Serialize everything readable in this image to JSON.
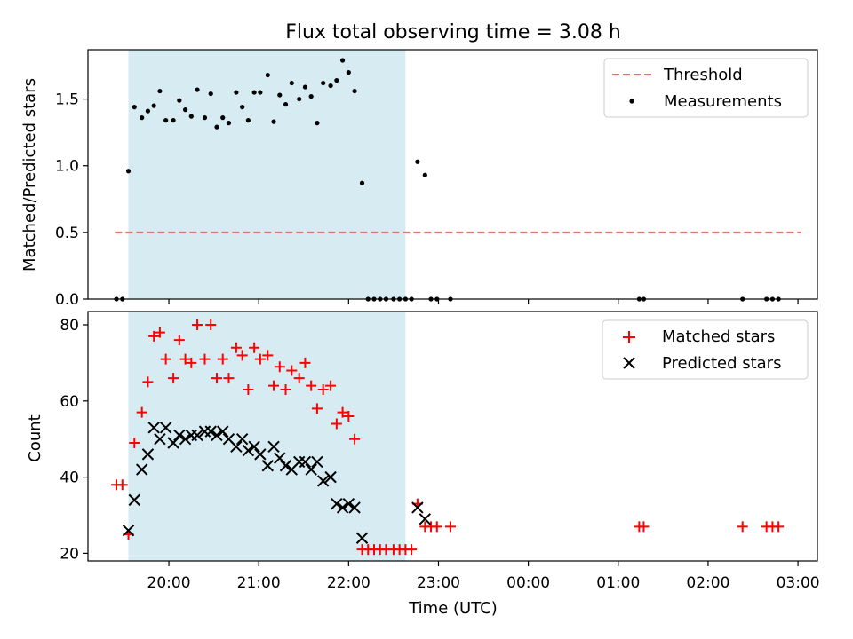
{
  "title": "Flux total observing time = 3.08 h",
  "colors": {
    "shade": "#add8e6",
    "threshold": "#ff6666",
    "measurement": "#000000",
    "matched": "#ff0000",
    "predicted": "#000000"
  },
  "chart_data": [
    {
      "type": "scatter",
      "ylabel": "Matched/Predicted stars",
      "xlabel": "",
      "ylim": [
        0,
        1.87
      ],
      "yticks": [
        "0.0",
        "0.5",
        "1.0",
        "1.5"
      ],
      "shaded_span": [
        "19:33",
        "22:38"
      ],
      "legend": {
        "position": "top-right",
        "entries": [
          "Threshold",
          "Measurements"
        ]
      },
      "grid": false,
      "series": [
        {
          "name": "Threshold",
          "style": "dashed-line",
          "x": [
            "19:24",
            "03:02"
          ],
          "y": [
            0.5,
            0.5
          ]
        },
        {
          "name": "Measurements",
          "style": "dot",
          "points": [
            [
              "19:25",
              0.0
            ],
            [
              "19:29",
              0.0
            ],
            [
              "19:33",
              0.96
            ],
            [
              "19:37",
              1.44
            ],
            [
              "19:42",
              1.36
            ],
            [
              "19:46",
              1.41
            ],
            [
              "19:50",
              1.45
            ],
            [
              "19:54",
              1.56
            ],
            [
              "19:58",
              1.34
            ],
            [
              "20:03",
              1.34
            ],
            [
              "20:07",
              1.49
            ],
            [
              "20:11",
              1.42
            ],
            [
              "20:15",
              1.37
            ],
            [
              "20:19",
              1.57
            ],
            [
              "20:24",
              1.36
            ],
            [
              "20:28",
              1.54
            ],
            [
              "20:32",
              1.29
            ],
            [
              "20:36",
              1.36
            ],
            [
              "20:40",
              1.32
            ],
            [
              "20:45",
              1.55
            ],
            [
              "20:49",
              1.44
            ],
            [
              "20:53",
              1.34
            ],
            [
              "20:57",
              1.55
            ],
            [
              "21:01",
              1.55
            ],
            [
              "21:06",
              1.68
            ],
            [
              "21:10",
              1.33
            ],
            [
              "21:14",
              1.53
            ],
            [
              "21:18",
              1.46
            ],
            [
              "21:22",
              1.62
            ],
            [
              "21:27",
              1.5
            ],
            [
              "21:31",
              1.59
            ],
            [
              "21:35",
              1.52
            ],
            [
              "21:39",
              1.32
            ],
            [
              "21:43",
              1.62
            ],
            [
              "21:48",
              1.6
            ],
            [
              "21:52",
              1.64
            ],
            [
              "21:56",
              1.79
            ],
            [
              "22:00",
              1.7
            ],
            [
              "22:04",
              1.56
            ],
            [
              "22:09",
              0.87
            ],
            [
              "22:13",
              0.0
            ],
            [
              "22:17",
              0.0
            ],
            [
              "22:21",
              0.0
            ],
            [
              "22:25",
              0.0
            ],
            [
              "22:30",
              0.0
            ],
            [
              "22:34",
              0.0
            ],
            [
              "22:38",
              0.0
            ],
            [
              "22:42",
              0.0
            ],
            [
              "22:46",
              1.03
            ],
            [
              "22:51",
              0.93
            ],
            [
              "22:55",
              0.0
            ],
            [
              "22:59",
              0.0
            ],
            [
              "23:08",
              0.0
            ],
            [
              "01:14",
              0.0
            ],
            [
              "01:17",
              0.0
            ],
            [
              "02:23",
              0.0
            ],
            [
              "02:39",
              0.0
            ],
            [
              "02:43",
              0.0
            ],
            [
              "02:47",
              0.0
            ]
          ]
        }
      ]
    },
    {
      "type": "scatter",
      "ylabel": "Count",
      "xlabel": "Time (UTC)",
      "ylim": [
        18,
        83.5
      ],
      "yticks": [
        "20",
        "40",
        "60",
        "80"
      ],
      "xticks": [
        "20:00",
        "21:00",
        "22:00",
        "23:00",
        "00:00",
        "01:00",
        "02:00",
        "03:00"
      ],
      "shaded_span": [
        "19:33",
        "22:38"
      ],
      "legend": {
        "position": "top-right",
        "entries": [
          "Matched stars",
          "Predicted stars"
        ]
      },
      "grid": false,
      "series": [
        {
          "name": "Matched stars",
          "style": "plus",
          "points": [
            [
              "19:25",
              38
            ],
            [
              "19:29",
              38
            ],
            [
              "19:33",
              25
            ],
            [
              "19:37",
              49
            ],
            [
              "19:42",
              57
            ],
            [
              "19:46",
              65
            ],
            [
              "19:50",
              77
            ],
            [
              "19:54",
              78
            ],
            [
              "19:58",
              71
            ],
            [
              "20:03",
              66
            ],
            [
              "20:07",
              76
            ],
            [
              "20:11",
              71
            ],
            [
              "20:15",
              70
            ],
            [
              "20:19",
              80
            ],
            [
              "20:24",
              71
            ],
            [
              "20:28",
              80
            ],
            [
              "20:32",
              66
            ],
            [
              "20:36",
              71
            ],
            [
              "20:40",
              66
            ],
            [
              "20:45",
              74
            ],
            [
              "20:49",
              72
            ],
            [
              "20:53",
              63
            ],
            [
              "20:57",
              74
            ],
            [
              "21:01",
              71
            ],
            [
              "21:06",
              72
            ],
            [
              "21:10",
              64
            ],
            [
              "21:14",
              69
            ],
            [
              "21:18",
              63
            ],
            [
              "21:22",
              68
            ],
            [
              "21:27",
              66
            ],
            [
              "21:31",
              70
            ],
            [
              "21:35",
              64
            ],
            [
              "21:39",
              58
            ],
            [
              "21:43",
              63
            ],
            [
              "21:48",
              64
            ],
            [
              "21:52",
              54
            ],
            [
              "21:56",
              57
            ],
            [
              "22:00",
              56
            ],
            [
              "22:04",
              50
            ],
            [
              "22:09",
              21
            ],
            [
              "22:13",
              21
            ],
            [
              "22:17",
              21
            ],
            [
              "22:21",
              21
            ],
            [
              "22:25",
              21
            ],
            [
              "22:30",
              21
            ],
            [
              "22:34",
              21
            ],
            [
              "22:38",
              21
            ],
            [
              "22:42",
              21
            ],
            [
              "22:46",
              33
            ],
            [
              "22:51",
              27
            ],
            [
              "22:55",
              27
            ],
            [
              "22:59",
              27
            ],
            [
              "23:08",
              27
            ],
            [
              "01:14",
              27
            ],
            [
              "01:17",
              27
            ],
            [
              "02:23",
              27
            ],
            [
              "02:39",
              27
            ],
            [
              "02:43",
              27
            ],
            [
              "02:47",
              27
            ]
          ]
        },
        {
          "name": "Predicted stars",
          "style": "cross",
          "points": [
            [
              "19:33",
              26
            ],
            [
              "19:37",
              34
            ],
            [
              "19:42",
              42
            ],
            [
              "19:46",
              46
            ],
            [
              "19:50",
              53
            ],
            [
              "19:54",
              50
            ],
            [
              "19:58",
              53
            ],
            [
              "20:03",
              49
            ],
            [
              "20:07",
              51
            ],
            [
              "20:11",
              50
            ],
            [
              "20:15",
              51
            ],
            [
              "20:19",
              51
            ],
            [
              "20:24",
              52
            ],
            [
              "20:28",
              52
            ],
            [
              "20:32",
              51
            ],
            [
              "20:36",
              52
            ],
            [
              "20:40",
              50
            ],
            [
              "20:45",
              48
            ],
            [
              "20:49",
              50
            ],
            [
              "20:53",
              47
            ],
            [
              "20:57",
              48
            ],
            [
              "21:01",
              46
            ],
            [
              "21:06",
              43
            ],
            [
              "21:10",
              48
            ],
            [
              "21:14",
              45
            ],
            [
              "21:18",
              43
            ],
            [
              "21:22",
              42
            ],
            [
              "21:27",
              44
            ],
            [
              "21:31",
              44
            ],
            [
              "21:35",
              42
            ],
            [
              "21:39",
              44
            ],
            [
              "21:43",
              39
            ],
            [
              "21:48",
              40
            ],
            [
              "21:52",
              33
            ],
            [
              "21:56",
              32
            ],
            [
              "22:00",
              33
            ],
            [
              "22:04",
              32
            ],
            [
              "22:09",
              24
            ],
            [
              "22:46",
              32
            ],
            [
              "22:51",
              29
            ]
          ]
        }
      ]
    }
  ]
}
